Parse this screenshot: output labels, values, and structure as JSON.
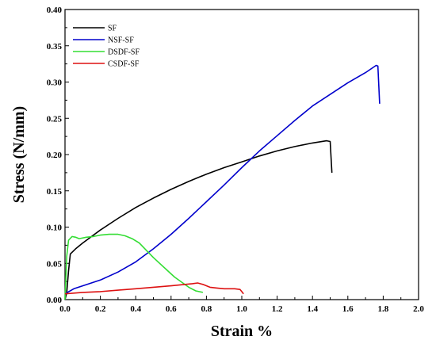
{
  "chart_data": {
    "type": "line",
    "title": "",
    "xlabel": "Strain %",
    "ylabel": "Stress (N/mm)",
    "xlim": [
      0.0,
      2.0
    ],
    "ylim": [
      0.0,
      0.4
    ],
    "xticks": [
      "0.0",
      "0.2",
      "0.4",
      "0.6",
      "0.8",
      "1.0",
      "1.2",
      "1.4",
      "1.6",
      "1.8",
      "2.0"
    ],
    "yticks": [
      "0.00",
      "0.05",
      "0.10",
      "0.15",
      "0.20",
      "0.25",
      "0.30",
      "0.35",
      "0.40"
    ],
    "grid": false,
    "legend_position": "top-left",
    "series": [
      {
        "name": "SF",
        "color": "#000000",
        "points": [
          [
            0.0,
            0.0
          ],
          [
            0.01,
            0.01
          ],
          [
            0.02,
            0.04
          ],
          [
            0.03,
            0.063
          ],
          [
            0.06,
            0.07
          ],
          [
            0.1,
            0.078
          ],
          [
            0.2,
            0.096
          ],
          [
            0.3,
            0.112
          ],
          [
            0.4,
            0.127
          ],
          [
            0.5,
            0.14
          ],
          [
            0.6,
            0.152
          ],
          [
            0.7,
            0.163
          ],
          [
            0.8,
            0.173
          ],
          [
            0.9,
            0.182
          ],
          [
            1.0,
            0.19
          ],
          [
            1.1,
            0.198
          ],
          [
            1.2,
            0.205
          ],
          [
            1.3,
            0.211
          ],
          [
            1.4,
            0.216
          ],
          [
            1.48,
            0.219
          ],
          [
            1.5,
            0.218
          ],
          [
            1.51,
            0.175
          ]
        ]
      },
      {
        "name": "NSF-SF",
        "color": "#0000cc",
        "points": [
          [
            0.0,
            0.008
          ],
          [
            0.05,
            0.015
          ],
          [
            0.1,
            0.019
          ],
          [
            0.2,
            0.027
          ],
          [
            0.3,
            0.038
          ],
          [
            0.4,
            0.052
          ],
          [
            0.5,
            0.07
          ],
          [
            0.6,
            0.09
          ],
          [
            0.7,
            0.112
          ],
          [
            0.8,
            0.135
          ],
          [
            0.9,
            0.158
          ],
          [
            1.0,
            0.182
          ],
          [
            1.1,
            0.205
          ],
          [
            1.2,
            0.226
          ],
          [
            1.3,
            0.247
          ],
          [
            1.4,
            0.267
          ],
          [
            1.5,
            0.283
          ],
          [
            1.6,
            0.299
          ],
          [
            1.7,
            0.313
          ],
          [
            1.76,
            0.323
          ],
          [
            1.77,
            0.322
          ],
          [
            1.78,
            0.27
          ]
        ]
      },
      {
        "name": "DSDF-SF",
        "color": "#33dd33",
        "points": [
          [
            0.0,
            0.0
          ],
          [
            0.005,
            0.03
          ],
          [
            0.01,
            0.06
          ],
          [
            0.02,
            0.082
          ],
          [
            0.04,
            0.087
          ],
          [
            0.06,
            0.086
          ],
          [
            0.08,
            0.084
          ],
          [
            0.12,
            0.086
          ],
          [
            0.16,
            0.087
          ],
          [
            0.2,
            0.089
          ],
          [
            0.25,
            0.09
          ],
          [
            0.3,
            0.09
          ],
          [
            0.34,
            0.088
          ],
          [
            0.38,
            0.084
          ],
          [
            0.42,
            0.078
          ],
          [
            0.46,
            0.068
          ],
          [
            0.5,
            0.058
          ],
          [
            0.54,
            0.049
          ],
          [
            0.58,
            0.04
          ],
          [
            0.62,
            0.031
          ],
          [
            0.66,
            0.024
          ],
          [
            0.7,
            0.017
          ],
          [
            0.74,
            0.012
          ],
          [
            0.78,
            0.01
          ]
        ]
      },
      {
        "name": "CSDF-SF",
        "color": "#dd1111",
        "points": [
          [
            0.0,
            0.008
          ],
          [
            0.05,
            0.009
          ],
          [
            0.1,
            0.01
          ],
          [
            0.2,
            0.011
          ],
          [
            0.3,
            0.013
          ],
          [
            0.4,
            0.015
          ],
          [
            0.5,
            0.017
          ],
          [
            0.6,
            0.019
          ],
          [
            0.68,
            0.021
          ],
          [
            0.72,
            0.022
          ],
          [
            0.75,
            0.023
          ],
          [
            0.78,
            0.021
          ],
          [
            0.82,
            0.017
          ],
          [
            0.86,
            0.016
          ],
          [
            0.9,
            0.015
          ],
          [
            0.96,
            0.015
          ],
          [
            0.99,
            0.014
          ],
          [
            1.0,
            0.011
          ],
          [
            1.01,
            0.008
          ]
        ]
      }
    ]
  }
}
